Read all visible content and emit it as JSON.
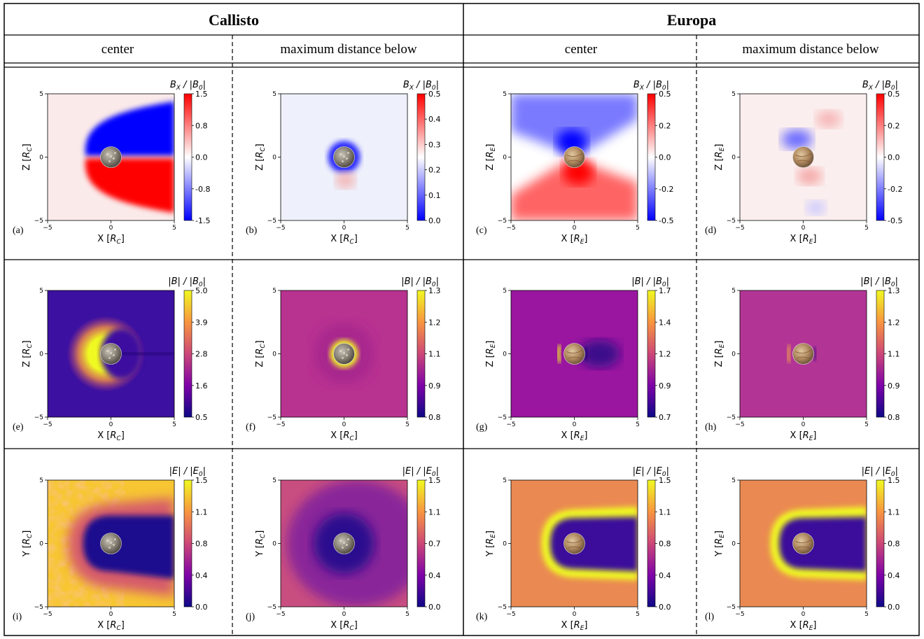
{
  "header": {
    "moons": [
      {
        "name": "Callisto",
        "columns": [
          "center",
          "maximum distance below"
        ]
      },
      {
        "name": "Europa",
        "columns": [
          "center",
          "maximum distance below"
        ]
      }
    ]
  },
  "colors": {
    "bwr_low": "#0000ff",
    "bwr_mid": "#ffffff",
    "bwr_high": "#ff0000",
    "plasma_low": "#0d0887",
    "plasma_mid": "#cc4778",
    "plasma_high": "#f0f921",
    "callisto_surface": "#8a8378",
    "europa_surface": "#b08a60"
  },
  "chart_data": [
    {
      "panel": "(a)",
      "type": "heatmap",
      "moon": "Callisto",
      "column": "center",
      "cbar_label": "B_X / |B_0|",
      "colormap": "bwr",
      "ticks": [
        "1.5",
        "0.8",
        "0.0",
        "-0.8",
        "-1.5"
      ],
      "clim": [
        -1.5,
        1.5
      ],
      "xlabel": "X",
      "xunit": "C",
      "ylabel": "Z",
      "yunit": "C",
      "xticks": [
        "-5",
        "0",
        "5"
      ],
      "yticks": [
        "5",
        "0",
        "-5"
      ],
      "xlim": [
        -5,
        5
      ],
      "ylim": [
        -5,
        5
      ]
    },
    {
      "panel": "(b)",
      "type": "heatmap",
      "moon": "Callisto",
      "column": "maximum distance below",
      "cbar_label": "B_X / |B_0|",
      "colormap": "bwr",
      "ticks": [
        "0.5",
        "0.4",
        "0.3",
        "0.2",
        "0.1",
        "0.0"
      ],
      "clim": [
        0.0,
        0.5
      ],
      "xlabel": "X",
      "xunit": "C",
      "ylabel": "Z",
      "yunit": "C",
      "xticks": [
        "-5",
        "0",
        "5"
      ],
      "yticks": [
        "5",
        "0",
        "-5"
      ],
      "xlim": [
        -5,
        5
      ],
      "ylim": [
        -5,
        5
      ]
    },
    {
      "panel": "(c)",
      "type": "heatmap",
      "moon": "Europa",
      "column": "center",
      "cbar_label": "B_X / |B_0|",
      "colormap": "bwr",
      "ticks": [
        "0.5",
        "0.2",
        "0.0",
        "-0.2",
        "-0.5"
      ],
      "clim": [
        -0.5,
        0.5
      ],
      "xlabel": "X",
      "xunit": "E",
      "ylabel": "Z",
      "yunit": "E",
      "xticks": [
        "-5",
        "0",
        "5"
      ],
      "yticks": [
        "5",
        "0",
        "-5"
      ],
      "xlim": [
        -5,
        5
      ],
      "ylim": [
        -5,
        5
      ]
    },
    {
      "panel": "(d)",
      "type": "heatmap",
      "moon": "Europa",
      "column": "maximum distance below",
      "cbar_label": "B_X / |B_0|",
      "colormap": "bwr",
      "ticks": [
        "0.5",
        "0.2",
        "0.0",
        "-0.2",
        "-0.5"
      ],
      "clim": [
        -0.5,
        0.5
      ],
      "xlabel": "X",
      "xunit": "E",
      "ylabel": "Z",
      "yunit": "E",
      "xticks": [
        "-5",
        "0",
        "5"
      ],
      "yticks": [
        "5",
        "0",
        "-5"
      ],
      "xlim": [
        -5,
        5
      ],
      "ylim": [
        -5,
        5
      ]
    },
    {
      "panel": "(e)",
      "type": "heatmap",
      "moon": "Callisto",
      "column": "center",
      "cbar_label": "|B| / |B_0|",
      "colormap": "plasma",
      "ticks": [
        "5.0",
        "3.9",
        "2.8",
        "1.6",
        "0.5"
      ],
      "clim": [
        0.5,
        5.0
      ],
      "xlabel": "X",
      "xunit": "C",
      "ylabel": "Z",
      "yunit": "C",
      "xticks": [
        "-5",
        "0",
        "5"
      ],
      "yticks": [
        "5",
        "0",
        "-5"
      ],
      "xlim": [
        -5,
        5
      ],
      "ylim": [
        -5,
        5
      ]
    },
    {
      "panel": "(f)",
      "type": "heatmap",
      "moon": "Callisto",
      "column": "maximum distance below",
      "cbar_label": "|B| / |B_0|",
      "colormap": "plasma",
      "ticks": [
        "1.3",
        "1.2",
        "1.1",
        "0.9",
        "0.8"
      ],
      "clim": [
        0.8,
        1.3
      ],
      "xlabel": "X",
      "xunit": "C",
      "ylabel": "Z",
      "yunit": "C",
      "xticks": [
        "-5",
        "0",
        "5"
      ],
      "yticks": [
        "5",
        "0",
        "-5"
      ],
      "xlim": [
        -5,
        5
      ],
      "ylim": [
        -5,
        5
      ]
    },
    {
      "panel": "(g)",
      "type": "heatmap",
      "moon": "Europa",
      "column": "center",
      "cbar_label": "|B| / |B_0|",
      "colormap": "plasma",
      "ticks": [
        "1.7",
        "1.4",
        "1.2",
        "0.9",
        "0.7"
      ],
      "clim": [
        0.7,
        1.7
      ],
      "xlabel": "X",
      "xunit": "E",
      "ylabel": "Z",
      "yunit": "E",
      "xticks": [
        "-5",
        "0",
        "5"
      ],
      "yticks": [
        "5",
        "0",
        "-5"
      ],
      "xlim": [
        -5,
        5
      ],
      "ylim": [
        -5,
        5
      ]
    },
    {
      "panel": "(h)",
      "type": "heatmap",
      "moon": "Europa",
      "column": "maximum distance below",
      "cbar_label": "|B| / |B_0|",
      "colormap": "plasma",
      "ticks": [
        "1.3",
        "1.2",
        "1.1",
        "0.9",
        "0.8"
      ],
      "clim": [
        0.8,
        1.3
      ],
      "xlabel": "X",
      "xunit": "E",
      "ylabel": "Z",
      "yunit": "E",
      "xticks": [
        "-5",
        "0",
        "5"
      ],
      "yticks": [
        "5",
        "0",
        "-5"
      ],
      "xlim": [
        -5,
        5
      ],
      "ylim": [
        -5,
        5
      ]
    },
    {
      "panel": "(i)",
      "type": "heatmap",
      "moon": "Callisto",
      "column": "center",
      "cbar_label": "|E| / |E_0|",
      "colormap": "plasma",
      "ticks": [
        "1.5",
        "1.1",
        "0.8",
        "0.4",
        "0.0"
      ],
      "clim": [
        0.0,
        1.5
      ],
      "xlabel": "X",
      "xunit": "C",
      "ylabel": "Y",
      "yunit": "C",
      "xticks": [
        "-5",
        "0",
        "5"
      ],
      "yticks": [
        "5",
        "0",
        "-5"
      ],
      "xlim": [
        -5,
        5
      ],
      "ylim": [
        -5,
        5
      ]
    },
    {
      "panel": "(j)",
      "type": "heatmap",
      "moon": "Callisto",
      "column": "maximum distance below",
      "cbar_label": "|E| / |E_0|",
      "colormap": "plasma",
      "ticks": [
        "1.5",
        "1.1",
        "0.7",
        "0.4",
        "0.0"
      ],
      "clim": [
        0.0,
        1.5
      ],
      "xlabel": "X",
      "xunit": "C",
      "ylabel": "Y",
      "yunit": "C",
      "xticks": [
        "-5",
        "0",
        "5"
      ],
      "yticks": [
        "5",
        "0",
        "-5"
      ],
      "xlim": [
        -5,
        5
      ],
      "ylim": [
        -5,
        5
      ]
    },
    {
      "panel": "(k)",
      "type": "heatmap",
      "moon": "Europa",
      "column": "center",
      "cbar_label": "|E| / |E_0|",
      "colormap": "plasma",
      "ticks": [
        "1.5",
        "1.1",
        "0.8",
        "0.4",
        "0.0"
      ],
      "clim": [
        0.0,
        1.5
      ],
      "xlabel": "X",
      "xunit": "E",
      "ylabel": "Y",
      "yunit": "E",
      "xticks": [
        "-5",
        "0",
        "5"
      ],
      "yticks": [
        "5",
        "0",
        "-5"
      ],
      "xlim": [
        -5,
        5
      ],
      "ylim": [
        -5,
        5
      ]
    },
    {
      "panel": "(l)",
      "type": "heatmap",
      "moon": "Europa",
      "column": "maximum distance below",
      "cbar_label": "|E| / |E_0|",
      "colormap": "plasma",
      "ticks": [
        "1.5",
        "1.1",
        "0.8",
        "0.4",
        "0.0"
      ],
      "clim": [
        0.0,
        1.5
      ],
      "xlabel": "X",
      "xunit": "E",
      "ylabel": "Y",
      "yunit": "E",
      "xticks": [
        "-5",
        "0",
        "5"
      ],
      "yticks": [
        "5",
        "0",
        "-5"
      ],
      "xlim": [
        -5,
        5
      ],
      "ylim": [
        -5,
        5
      ]
    }
  ]
}
